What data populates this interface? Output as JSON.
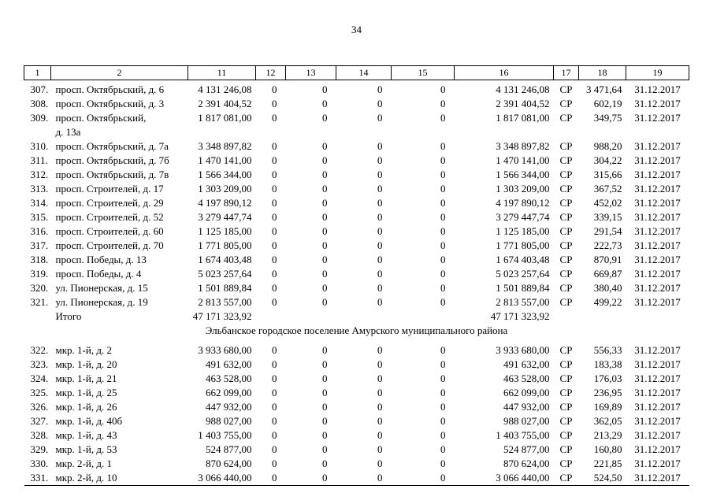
{
  "page_number": "34",
  "table": {
    "headers": [
      "1",
      "2",
      "11",
      "12",
      "13",
      "14",
      "15",
      "16",
      "17",
      "18",
      "19"
    ],
    "rows": [
      {
        "type": "data",
        "num": "307.",
        "address": "просп. Октябрьский, д. 6",
        "c11": "4 131 246,08",
        "c12": "0",
        "c13": "0",
        "c14": "0",
        "c15": "0",
        "c16": "4 131 246,08",
        "c17": "СР",
        "c18": "3 471,64",
        "c19": "31.12.2017"
      },
      {
        "type": "data",
        "num": "308.",
        "address": "просп. Октябрьский, д. 3",
        "c11": "2 391 404,52",
        "c12": "0",
        "c13": "0",
        "c14": "0",
        "c15": "0",
        "c16": "2 391 404,52",
        "c17": "СР",
        "c18": "602,19",
        "c19": "31.12.2017"
      },
      {
        "type": "data",
        "num": "309.",
        "address": "просп. Октябрьский,\nд. 13а",
        "c11": "1 817 081,00",
        "c12": "0",
        "c13": "0",
        "c14": "0",
        "c15": "0",
        "c16": "1 817 081,00",
        "c17": "СР",
        "c18": "349,75",
        "c19": "31.12.2017"
      },
      {
        "type": "data",
        "num": "310.",
        "address": "просп. Октябрьский, д. 7а",
        "c11": "3 348 897,82",
        "c12": "0",
        "c13": "0",
        "c14": "0",
        "c15": "0",
        "c16": "3 348 897,82",
        "c17": "СР",
        "c18": "988,20",
        "c19": "31.12.2017"
      },
      {
        "type": "data",
        "num": "311.",
        "address": "просп. Октябрьский, д. 7б",
        "c11": "1 470 141,00",
        "c12": "0",
        "c13": "0",
        "c14": "0",
        "c15": "0",
        "c16": "1 470 141,00",
        "c17": "СР",
        "c18": "304,22",
        "c19": "31.12.2017"
      },
      {
        "type": "data",
        "num": "312.",
        "address": "просп. Октябрьский, д. 7в",
        "c11": "1 566 344,00",
        "c12": "0",
        "c13": "0",
        "c14": "0",
        "c15": "0",
        "c16": "1 566 344,00",
        "c17": "СР",
        "c18": "315,66",
        "c19": "31.12.2017"
      },
      {
        "type": "data",
        "num": "313.",
        "address": "просп. Строителей, д. 17",
        "c11": "1 303 209,00",
        "c12": "0",
        "c13": "0",
        "c14": "0",
        "c15": "0",
        "c16": "1 303 209,00",
        "c17": "СР",
        "c18": "367,52",
        "c19": "31.12.2017"
      },
      {
        "type": "data",
        "num": "314.",
        "address": "просп. Строителей, д. 29",
        "c11": "4 197 890,12",
        "c12": "0",
        "c13": "0",
        "c14": "0",
        "c15": "0",
        "c16": "4 197 890,12",
        "c17": "СР",
        "c18": "452,02",
        "c19": "31.12.2017"
      },
      {
        "type": "data",
        "num": "315.",
        "address": "просп. Строителей, д. 52",
        "c11": "3 279 447,74",
        "c12": "0",
        "c13": "0",
        "c14": "0",
        "c15": "0",
        "c16": "3 279 447,74",
        "c17": "СР",
        "c18": "339,15",
        "c19": "31.12.2017"
      },
      {
        "type": "data",
        "num": "316.",
        "address": "просп. Строителей, д. 60",
        "c11": "1 125 185,00",
        "c12": "0",
        "c13": "0",
        "c14": "0",
        "c15": "0",
        "c16": "1 125 185,00",
        "c17": "СР",
        "c18": "291,54",
        "c19": "31.12.2017"
      },
      {
        "type": "data",
        "num": "317.",
        "address": "просп. Строителей, д. 70",
        "c11": "1 771 805,00",
        "c12": "0",
        "c13": "0",
        "c14": "0",
        "c15": "0",
        "c16": "1 771 805,00",
        "c17": "СР",
        "c18": "222,73",
        "c19": "31.12.2017"
      },
      {
        "type": "data",
        "num": "318.",
        "address": "просп. Победы, д. 13",
        "c11": "1 674 403,48",
        "c12": "0",
        "c13": "0",
        "c14": "0",
        "c15": "0",
        "c16": "1 674 403,48",
        "c17": "СР",
        "c18": "870,91",
        "c19": "31.12.2017"
      },
      {
        "type": "data",
        "num": "319.",
        "address": "просп. Победы, д. 4",
        "c11": "5 023 257,64",
        "c12": "0",
        "c13": "0",
        "c14": "0",
        "c15": "0",
        "c16": "5 023 257,64",
        "c17": "СР",
        "c18": "669,87",
        "c19": "31.12.2017"
      },
      {
        "type": "data",
        "num": "320.",
        "address": "ул. Пионерская, д. 15",
        "c11": "1 501 889,84",
        "c12": "0",
        "c13": "0",
        "c14": "0",
        "c15": "0",
        "c16": "1 501 889,84",
        "c17": "СР",
        "c18": "380,40",
        "c19": "31.12.2017"
      },
      {
        "type": "data",
        "num": "321.",
        "address": "ул. Пионерская, д. 19",
        "c11": "2 813 557,00",
        "c12": "0",
        "c13": "0",
        "c14": "0",
        "c15": "0",
        "c16": "2 813 557,00",
        "c17": "СР",
        "c18": "499,22",
        "c19": "31.12.2017"
      },
      {
        "type": "total",
        "num": "",
        "address": "Итого",
        "c11": "47 171 323,92",
        "c12": "",
        "c13": "",
        "c14": "",
        "c15": "",
        "c16": "47 171 323,92",
        "c17": "",
        "c18": "",
        "c19": ""
      },
      {
        "type": "section",
        "label": "Эльбанское городское поселение Амурского муниципального района"
      },
      {
        "type": "data",
        "num": "322.",
        "address": "мкр. 1-й, д. 2",
        "c11": "3 933 680,00",
        "c12": "0",
        "c13": "0",
        "c14": "0",
        "c15": "0",
        "c16": "3 933 680,00",
        "c17": "СР",
        "c18": "556,33",
        "c19": "31.12.2017"
      },
      {
        "type": "data",
        "num": "323.",
        "address": "мкр. 1-й, д. 20",
        "c11": "491 632,00",
        "c12": "0",
        "c13": "0",
        "c14": "0",
        "c15": "0",
        "c16": "491 632,00",
        "c17": "СР",
        "c18": "183,38",
        "c19": "31.12.2017"
      },
      {
        "type": "data",
        "num": "324.",
        "address": "мкр. 1-й, д. 21",
        "c11": "463 528,00",
        "c12": "0",
        "c13": "0",
        "c14": "0",
        "c15": "0",
        "c16": "463 528,00",
        "c17": "СР",
        "c18": "176,03",
        "c19": "31.12.2017"
      },
      {
        "type": "data",
        "num": "325.",
        "address": "мкр. 1-й, д. 25",
        "c11": "662 099,00",
        "c12": "0",
        "c13": "0",
        "c14": "0",
        "c15": "0",
        "c16": "662 099,00",
        "c17": "СР",
        "c18": "236,95",
        "c19": "31.12.2017"
      },
      {
        "type": "data",
        "num": "326.",
        "address": "мкр. 1-й, д. 26",
        "c11": "447 932,00",
        "c12": "0",
        "c13": "0",
        "c14": "0",
        "c15": "0",
        "c16": "447 932,00",
        "c17": "СР",
        "c18": "169,89",
        "c19": "31.12.2017"
      },
      {
        "type": "data",
        "num": "327.",
        "address": "мкр. 1-й, д. 40б",
        "c11": "988 027,00",
        "c12": "0",
        "c13": "0",
        "c14": "0",
        "c15": "0",
        "c16": "988 027,00",
        "c17": "СР",
        "c18": "362,05",
        "c19": "31.12.2017"
      },
      {
        "type": "data",
        "num": "328.",
        "address": "мкр. 1-й, д. 43",
        "c11": "1 403 755,00",
        "c12": "0",
        "c13": "0",
        "c14": "0",
        "c15": "0",
        "c16": "1 403 755,00",
        "c17": "СР",
        "c18": "213,29",
        "c19": "31.12.2017"
      },
      {
        "type": "data",
        "num": "329.",
        "address": "мкр. 1-й, д. 53",
        "c11": "524 877,00",
        "c12": "0",
        "c13": "0",
        "c14": "0",
        "c15": "0",
        "c16": "524 877,00",
        "c17": "СР",
        "c18": "160,80",
        "c19": "31.12.2017"
      },
      {
        "type": "data",
        "num": "330.",
        "address": "мкр. 2-й, д. 1",
        "c11": "870 624,00",
        "c12": "0",
        "c13": "0",
        "c14": "0",
        "c15": "0",
        "c16": "870 624,00",
        "c17": "СР",
        "c18": "221,85",
        "c19": "31.12.2017"
      },
      {
        "type": "data",
        "num": "331.",
        "address": "мкр. 2-й, д. 10",
        "c11": "3 066 440,00",
        "c12": "0",
        "c13": "0",
        "c14": "0",
        "c15": "0",
        "c16": "3 066 440,00",
        "c17": "СР",
        "c18": "524,50",
        "c19": "31.12.2017"
      }
    ]
  }
}
